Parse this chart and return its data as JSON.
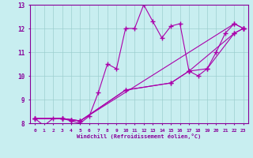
{
  "title": "",
  "xlabel": "Windchill (Refroidissement éolien,°C)",
  "ylabel": "",
  "bg_color": "#c8eef0",
  "line_color": "#aa00aa",
  "grid_color": "#99cccc",
  "axis_color": "#880099",
  "xlim": [
    -0.5,
    23.5
  ],
  "ylim": [
    8,
    13
  ],
  "xticks": [
    0,
    1,
    2,
    3,
    4,
    5,
    6,
    7,
    8,
    9,
    10,
    11,
    12,
    13,
    14,
    15,
    16,
    17,
    18,
    19,
    20,
    21,
    22,
    23
  ],
  "yticks": [
    8,
    9,
    10,
    11,
    12,
    13
  ],
  "lines": [
    {
      "x": [
        0,
        1,
        2,
        3,
        4,
        5,
        6,
        7,
        8,
        9,
        10,
        11,
        12,
        13,
        14,
        15,
        16,
        17,
        18,
        19,
        20,
        21,
        22,
        23
      ],
      "y": [
        8.2,
        7.9,
        8.2,
        8.2,
        8.1,
        8.0,
        8.3,
        9.3,
        10.5,
        10.3,
        12.0,
        12.0,
        13.0,
        12.3,
        11.6,
        12.1,
        12.2,
        10.2,
        10.0,
        10.3,
        11.0,
        11.8,
        12.2,
        12.0
      ]
    },
    {
      "x": [
        0,
        3,
        4,
        5,
        22,
        23
      ],
      "y": [
        8.2,
        8.2,
        8.15,
        8.1,
        12.2,
        12.0
      ]
    },
    {
      "x": [
        0,
        3,
        4,
        5,
        10,
        15,
        17,
        22,
        23
      ],
      "y": [
        8.2,
        8.2,
        8.15,
        8.1,
        9.4,
        9.7,
        10.2,
        11.8,
        12.0
      ]
    },
    {
      "x": [
        0,
        3,
        4,
        5,
        10,
        15,
        17,
        19,
        22,
        23
      ],
      "y": [
        8.2,
        8.2,
        8.15,
        8.1,
        9.4,
        9.7,
        10.2,
        10.3,
        11.8,
        12.0
      ]
    }
  ]
}
